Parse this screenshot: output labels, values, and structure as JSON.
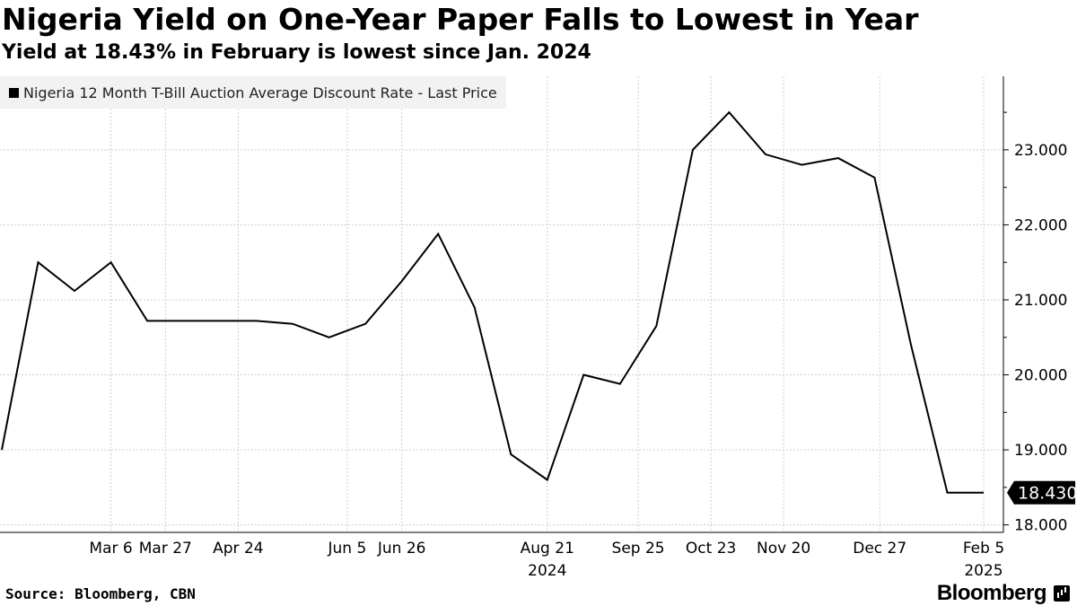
{
  "header": {
    "title": "Nigeria Yield on One-Year Paper Falls to Lowest in Year",
    "subtitle": "Yield at 18.43% in February is lowest since Jan. 2024"
  },
  "legend": {
    "label": "Nigeria 12 Month T-Bill Auction Average Discount Rate - Last Price"
  },
  "footer": {
    "source": "Source: Bloomberg, CBN",
    "brand": "Bloomberg"
  },
  "colors": {
    "line": "#000000",
    "grid": "#cccccc",
    "legend_bg": "#f2f2f2",
    "last_value_bg": "#000000"
  },
  "chart_data": {
    "type": "line",
    "title": "Nigeria Yield on One-Year Paper Falls to Lowest in Year",
    "subtitle": "Yield at 18.43% in February is lowest since Jan. 2024",
    "x": [
      "2024-01-24",
      "2024-02-07",
      "2024-02-21",
      "2024-03-06",
      "2024-03-20",
      "2024-04-03",
      "2024-04-17",
      "2024-05-01",
      "2024-05-15",
      "2024-05-29",
      "2024-06-12",
      "2024-06-26",
      "2024-07-10",
      "2024-07-24",
      "2024-08-07",
      "2024-08-21",
      "2024-09-04",
      "2024-09-18",
      "2024-10-02",
      "2024-10-16",
      "2024-10-30",
      "2024-11-13",
      "2024-11-27",
      "2024-12-11",
      "2024-12-25",
      "2025-01-08",
      "2025-01-22",
      "2025-02-05"
    ],
    "series": [
      {
        "name": "Nigeria 12 Month T-Bill Auction Average Discount Rate - Last Price",
        "values": [
          19.0,
          21.5,
          21.12,
          21.5,
          20.72,
          20.72,
          20.72,
          20.72,
          20.68,
          20.5,
          20.68,
          21.25,
          21.88,
          20.9,
          18.94,
          18.6,
          20.0,
          19.88,
          20.65,
          23.0,
          23.5,
          22.94,
          22.8,
          22.89,
          22.63,
          20.4,
          18.43,
          18.43
        ]
      }
    ],
    "last_value": 18.43,
    "last_value_label": "18.430",
    "x_tick_labels": [
      "Mar 6",
      "Mar 27",
      "Apr 24",
      "Jun 5",
      "Jun 26",
      "Aug 21",
      "Sep 25",
      "Oct 23",
      "Nov 20",
      "Dec 27",
      "Feb 5"
    ],
    "x_tick_dates": [
      "2024-03-06",
      "2024-03-27",
      "2024-04-24",
      "2024-06-05",
      "2024-06-26",
      "2024-08-21",
      "2024-09-25",
      "2024-10-23",
      "2024-11-20",
      "2024-12-27",
      "2025-02-05"
    ],
    "x_year_labels": [
      "2024",
      "2025"
    ],
    "x_year_dates": [
      "2024-08-21",
      "2025-02-05"
    ],
    "y_ticks": [
      18.0,
      19.0,
      20.0,
      21.0,
      22.0,
      23.0
    ],
    "y_tick_labels": [
      "18.000",
      "19.000",
      "20.000",
      "21.000",
      "22.000",
      "23.000"
    ],
    "ylim": [
      17.9,
      23.98
    ],
    "xlabel": "",
    "ylabel": "",
    "grid": true,
    "legend_position": "top-left",
    "y_axis_position": "right"
  }
}
